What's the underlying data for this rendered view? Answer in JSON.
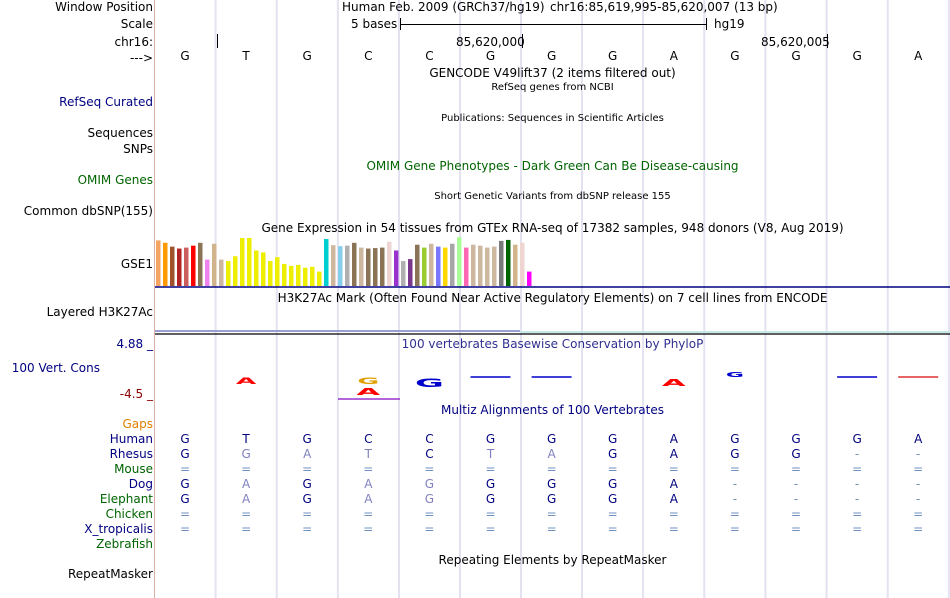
{
  "header": {
    "window_position_label": "Window Position",
    "scale_label": "Scale",
    "chrom_label": "chr16:",
    "strand_label": "--->",
    "assembly_text": "Human Feb. 2009 (GRCh37/hg19)",
    "position_text": "chr16:85,619,995-85,620,007 (13 bp)",
    "scale_text": "5 bases",
    "db_text": "hg19",
    "coord1": "85,620,000",
    "coord2": "85,620,005"
  },
  "reference_bases": [
    "G",
    "T",
    "G",
    "C",
    "C",
    "G",
    "G",
    "G",
    "A",
    "G",
    "G",
    "G",
    "A"
  ],
  "tracks": {
    "gencode": {
      "title": "GENCODE V49lift37 (2 items filtered out)"
    },
    "refseq": {
      "label": "RefSeq Curated",
      "title": "RefSeq genes from NCBI"
    },
    "publications": {
      "label": "Sequences",
      "title": "Publications: Sequences in Scientific Articles"
    },
    "snps": {
      "label": "SNPs"
    },
    "omim": {
      "label": "OMIM Genes",
      "title": "OMIM Gene Phenotypes - Dark Green Can Be Disease-causing"
    },
    "dbsnp": {
      "label": "Common dbSNP(155)",
      "title": "Short Genetic Variants from dbSNP release 155"
    },
    "gtex": {
      "label": "GSE1",
      "title": "Gene Expression in 54 tissues from GTEx RNA-seq of 17382 samples, 948 donors (V8, Aug 2019)"
    },
    "h3k27ac": {
      "label": "Layered H3K27Ac",
      "title": "H3K27Ac Mark (Often Found Near Active Regulatory Elements) on 7 cell lines from ENCODE"
    },
    "cons": {
      "label": "100 Vert. Cons",
      "max_label": "4.88 _",
      "min_label": "-4.5 _",
      "title": "100 vertebrates Basewise Conservation by PhyloP"
    },
    "multiz": {
      "title": "Multiz Alignments of 100 Vertebrates",
      "gaps_label": "Gaps"
    },
    "repeatmasker": {
      "label": "RepeatMasker",
      "title": "Repeating Elements by RepeatMasker"
    }
  },
  "colors": {
    "label_blue": "#000080",
    "omim_green": "#006400",
    "gaps_orange": "#e08000",
    "cons_red": "#8b0000",
    "cons_title": "#303090",
    "grid": "#d0d0e8"
  },
  "gtex_bars": [
    {
      "v": 0.95,
      "c": "#f4a460"
    },
    {
      "v": 0.9,
      "c": "#ff9900"
    },
    {
      "v": 0.82,
      "c": "#a0522d"
    },
    {
      "v": 0.78,
      "c": "#b22222"
    },
    {
      "v": 0.8,
      "c": "#cd5c5c"
    },
    {
      "v": 0.84,
      "c": "#ff0000"
    },
    {
      "v": 0.9,
      "c": "#8b7355"
    },
    {
      "v": 0.55,
      "c": "#ee82ee"
    },
    {
      "v": 0.88,
      "c": "#d2b48c"
    },
    {
      "v": 0.55,
      "c": "#cdb79e"
    },
    {
      "v": 0.52,
      "c": "#eeee00"
    },
    {
      "v": 0.62,
      "c": "#eeee00"
    },
    {
      "v": 1.0,
      "c": "#eeee00"
    },
    {
      "v": 1.0,
      "c": "#eeee00"
    },
    {
      "v": 0.74,
      "c": "#eeee00"
    },
    {
      "v": 0.7,
      "c": "#eeee00"
    },
    {
      "v": 0.52,
      "c": "#eeee00"
    },
    {
      "v": 0.6,
      "c": "#eeee00"
    },
    {
      "v": 0.46,
      "c": "#eeee00"
    },
    {
      "v": 0.42,
      "c": "#eeee00"
    },
    {
      "v": 0.44,
      "c": "#eeee00"
    },
    {
      "v": 0.38,
      "c": "#eeee00"
    },
    {
      "v": 0.4,
      "c": "#eeee00"
    },
    {
      "v": 0.3,
      "c": "#eeee00"
    },
    {
      "v": 0.98,
      "c": "#00ced1"
    },
    {
      "v": 0.85,
      "c": "#cdb79e"
    },
    {
      "v": 0.83,
      "c": "#87ceeb"
    },
    {
      "v": 0.84,
      "c": "#b0b0b0"
    },
    {
      "v": 0.9,
      "c": "#8b7355"
    },
    {
      "v": 0.8,
      "c": "#cdb79e"
    },
    {
      "v": 0.78,
      "c": "#8b7355"
    },
    {
      "v": 0.79,
      "c": "#8b7355"
    },
    {
      "v": 0.8,
      "c": "#8b7355"
    },
    {
      "v": 0.92,
      "c": "#eed5d2"
    },
    {
      "v": 0.74,
      "c": "#9932cc"
    },
    {
      "v": 0.52,
      "c": "#b0b0b0"
    },
    {
      "v": 0.56,
      "c": "#7a378b"
    },
    {
      "v": 0.86,
      "c": "#8b7355"
    },
    {
      "v": 0.8,
      "c": "#9acd32"
    },
    {
      "v": 0.88,
      "c": "#cdb79e"
    },
    {
      "v": 0.82,
      "c": "#7777ff"
    },
    {
      "v": 0.8,
      "c": "#ffd700"
    },
    {
      "v": 0.88,
      "c": "#a6a6a6"
    },
    {
      "v": 1.02,
      "c": "#aaff99"
    },
    {
      "v": 0.8,
      "c": "#ff69b4"
    },
    {
      "v": 0.86,
      "c": "#cdb79e"
    },
    {
      "v": 0.84,
      "c": "#cdb79e"
    },
    {
      "v": 0.8,
      "c": "#cdb79e"
    },
    {
      "v": 0.82,
      "c": "#cdb79e"
    },
    {
      "v": 0.94,
      "c": "#7a7a7a"
    },
    {
      "v": 0.96,
      "c": "#006400"
    },
    {
      "v": 0.86,
      "c": "#d2b48c"
    },
    {
      "v": 0.9,
      "c": "#eed5d2"
    },
    {
      "v": 0.3,
      "c": "#ff00ff"
    }
  ],
  "multiz_rows": [
    {
      "label": "Human",
      "color": "#000080",
      "bases": [
        "G",
        "T",
        "G",
        "C",
        "C",
        "G",
        "G",
        "G",
        "A",
        "G",
        "G",
        "G",
        "A"
      ],
      "base_color": "#000080"
    },
    {
      "label": "Rhesus",
      "color": "#000080",
      "bases": [
        "G",
        "G",
        "A",
        "T",
        "C",
        "T",
        "A",
        "G",
        "A",
        "G",
        "G",
        "-",
        "-"
      ],
      "base_color": "#000080"
    },
    {
      "label": "Mouse",
      "color": "#006400",
      "bases": [
        "=",
        "=",
        "=",
        "=",
        "=",
        "=",
        "=",
        "=",
        "=",
        "=",
        "=",
        "=",
        "="
      ],
      "base_color": "#7090c0"
    },
    {
      "label": "Dog",
      "color": "#000080",
      "bases": [
        "G",
        "A",
        "G",
        "A",
        "G",
        "G",
        "G",
        "G",
        "A",
        "-",
        "-",
        "-",
        "-"
      ],
      "base_color": "#000080"
    },
    {
      "label": "Elephant",
      "color": "#006400",
      "bases": [
        "G",
        "A",
        "G",
        "A",
        "G",
        "G",
        "G",
        "G",
        "A",
        "-",
        "-",
        "-",
        "-"
      ],
      "base_color": "#000080"
    },
    {
      "label": "Chicken",
      "color": "#006400",
      "bases": [
        "=",
        "=",
        "=",
        "=",
        "=",
        "=",
        "=",
        "=",
        "=",
        "=",
        "=",
        "=",
        "="
      ],
      "base_color": "#7090c0"
    },
    {
      "label": "X_tropicalis",
      "color": "#000080",
      "bases": [
        "=",
        "=",
        "=",
        "=",
        "=",
        "=",
        "=",
        "=",
        "=",
        "=",
        "=",
        "=",
        "="
      ],
      "base_color": "#7090c0"
    },
    {
      "label": "Zebrafish",
      "color": "#006400",
      "bases": [],
      "base_color": "#7090c0"
    }
  ]
}
